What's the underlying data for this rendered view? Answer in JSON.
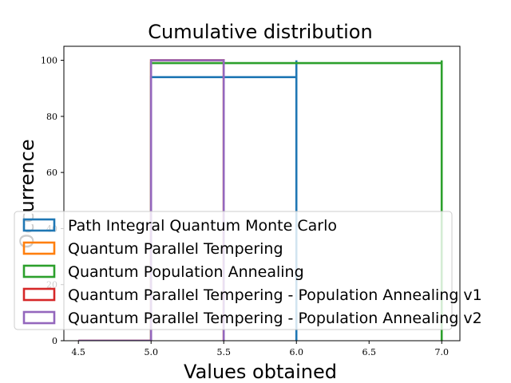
{
  "chart_data": {
    "type": "step",
    "title": "Cumulative distribution",
    "xlabel": "Values obtained",
    "ylabel": "Occurrence",
    "xlim": [
      4.4,
      7.125
    ],
    "ylim": [
      0,
      105
    ],
    "xticks": [
      4.5,
      5.0,
      5.5,
      6.0,
      6.5,
      7.0
    ],
    "xtick_labels": [
      "4.5",
      "5.0",
      "5.5",
      "6.0",
      "6.5",
      "7.0"
    ],
    "yticks": [
      0,
      20,
      40,
      60,
      80,
      100
    ],
    "ytick_labels": [
      "0",
      "20",
      "40",
      "60",
      "80",
      "100"
    ],
    "grid": false,
    "legend_position": "center-left",
    "series": [
      {
        "name": "Path Integral Quantum Monte Carlo",
        "color": "#1f77b4",
        "x": [
          5.0,
          5.0,
          6.0,
          6.0,
          6.0
        ],
        "y": [
          0,
          94,
          94,
          100,
          0
        ]
      },
      {
        "name": "Quantum Parallel Tempering",
        "color": "#ff7f0e",
        "x": [
          5.0,
          5.0,
          5.5,
          5.5
        ],
        "y": [
          0,
          100,
          100,
          0
        ]
      },
      {
        "name": "Quantum Population Annealing",
        "color": "#2ca02c",
        "x": [
          5.0,
          5.0,
          7.0,
          7.0,
          7.0
        ],
        "y": [
          0,
          99,
          99,
          100,
          0
        ]
      },
      {
        "name": "Quantum Parallel Tempering - Population Annealing v1",
        "color": "#d62728",
        "x": [
          4.5,
          5.0,
          5.0,
          5.5,
          5.5
        ],
        "y": [
          0,
          0,
          100,
          100,
          0
        ]
      },
      {
        "name": "Quantum Parallel Tempering - Population Annealing v2",
        "color": "#9467bd",
        "x": [
          4.5,
          5.0,
          5.0,
          5.5,
          5.5
        ],
        "y": [
          0,
          0,
          100,
          100,
          0
        ]
      }
    ]
  }
}
